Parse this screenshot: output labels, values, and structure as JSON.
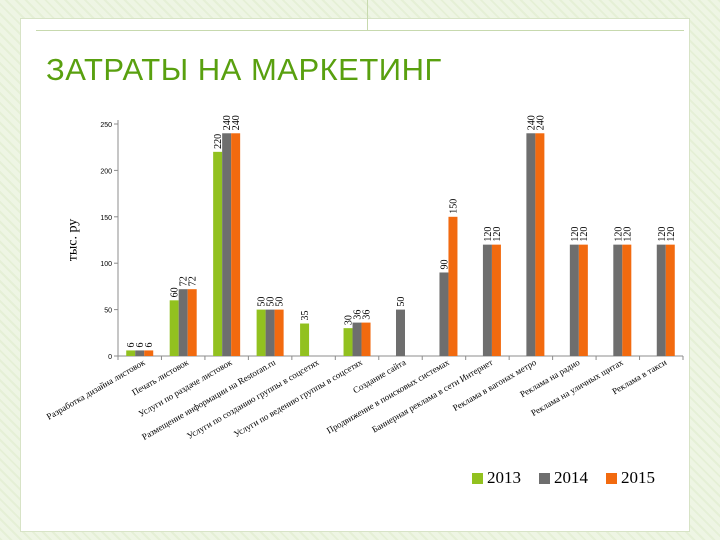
{
  "page": {
    "title": "ЗАТРАТЫ НА МАРКЕТИНГ"
  },
  "colors": {
    "s2013": "#92c11f",
    "s2014": "#6e6e6e",
    "s2015": "#f26a0f",
    "accent_green": "#59a00f"
  },
  "chart_data": {
    "type": "bar",
    "title": "",
    "xlabel": "",
    "ylabel": "тыс. ру",
    "ylim": [
      0,
      250
    ],
    "yticks": [
      0,
      50,
      100,
      150,
      200,
      250
    ],
    "grid": false,
    "legend_position": "bottom-right",
    "categories": [
      "Разработка дизайна листовок",
      "Печать листовок",
      "Услуги по раздаче листовок",
      "Размещение информации на Restoran.ru",
      "Услуги по созданию группы в соцсетях",
      "Услуги по ведению группы в соцсетях",
      "Создание сайта",
      "Продвижение в поисковых системах",
      "Баннерная реклама в сети Интернет",
      "Реклама в вагонах метро",
      "Реклама на радио",
      "Реклама на уличных щитах",
      "Реклама в такси"
    ],
    "series": [
      {
        "name": "2013",
        "values": [
          6,
          60,
          220,
          50,
          35,
          30,
          null,
          null,
          null,
          null,
          null,
          null,
          null
        ]
      },
      {
        "name": "2014",
        "values": [
          6,
          72,
          240,
          50,
          null,
          36,
          50,
          90,
          120,
          240,
          120,
          120,
          120
        ]
      },
      {
        "name": "2015",
        "values": [
          6,
          72,
          240,
          50,
          null,
          36,
          null,
          150,
          120,
          240,
          120,
          120,
          120
        ]
      }
    ]
  }
}
